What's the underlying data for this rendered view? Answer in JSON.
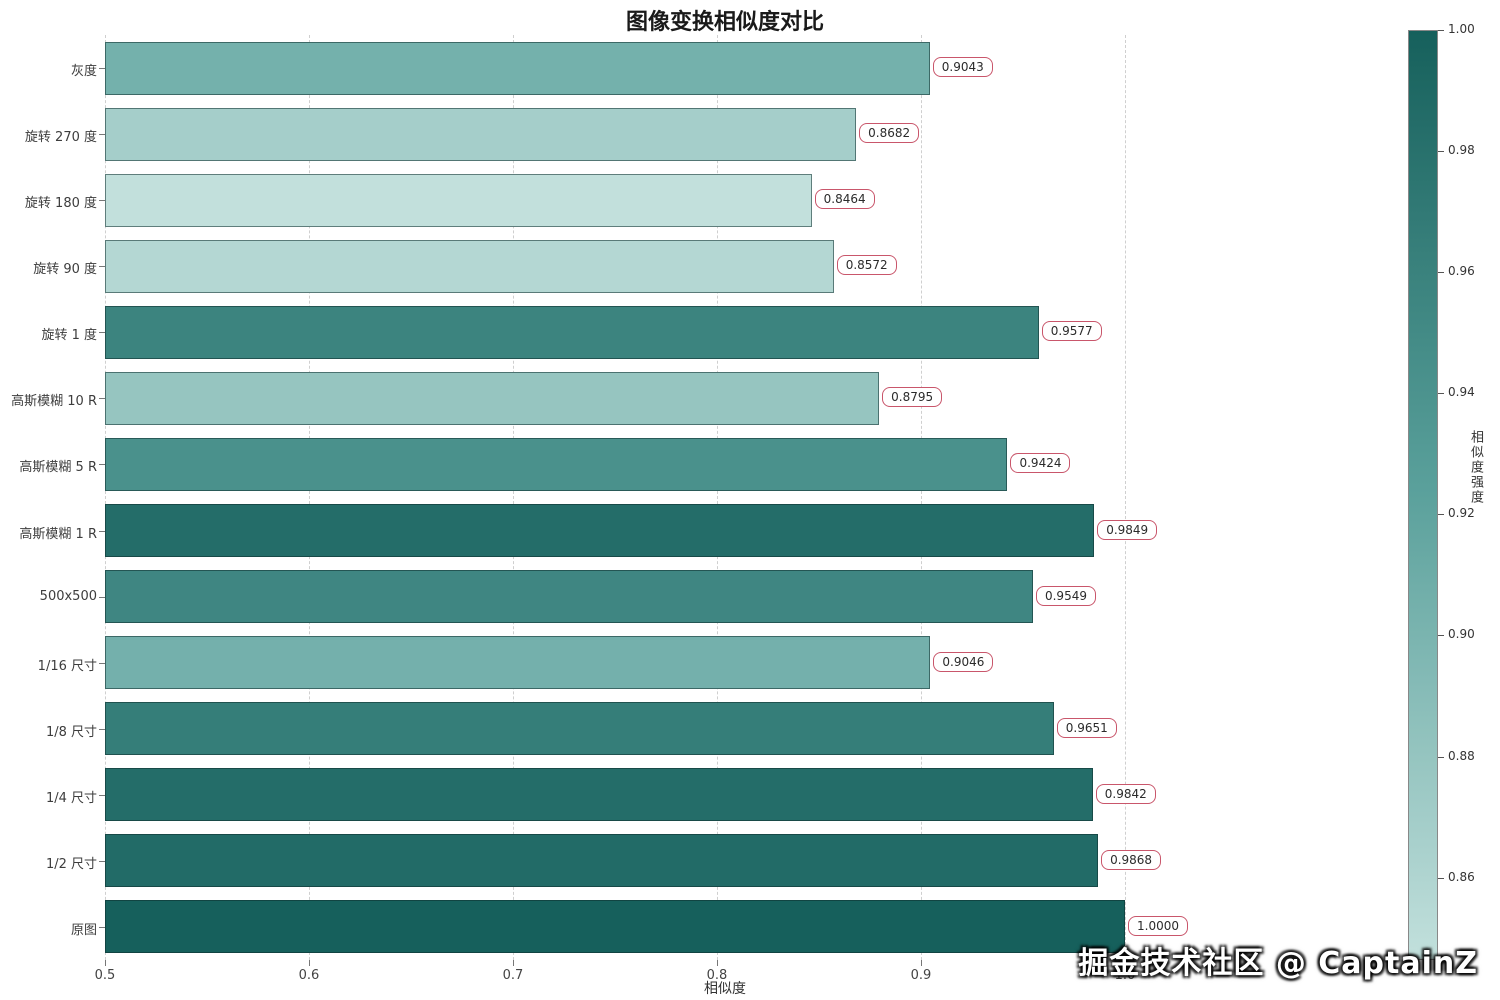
{
  "title": "图像变换相似度对比",
  "xlabel": "相似度",
  "watermark": "掘金技术社区 @ CaptainZ",
  "colorbar": {
    "label": "相似度强度",
    "vmin": 0.8464,
    "vmax": 1.0,
    "ticks": [
      "1.00",
      "0.98",
      "0.96",
      "0.94",
      "0.92",
      "0.90",
      "0.88",
      "0.86"
    ]
  },
  "chart_data": {
    "type": "bar",
    "orientation": "horizontal",
    "title": "图像变换相似度对比",
    "xlabel": "相似度",
    "ylabel": "",
    "categories": [
      "灰度",
      "旋转 270 度",
      "旋转 180 度",
      "旋转 90 度",
      "旋转 1 度",
      "高斯模糊 10 R",
      "高斯模糊 5 R",
      "高斯模糊 1 R",
      "500x500",
      "1/16 尺寸",
      "1/8 尺寸",
      "1/4 尺寸",
      "1/2 尺寸",
      "原图"
    ],
    "values": [
      0.9043,
      0.8682,
      0.8464,
      0.8572,
      0.9577,
      0.8795,
      0.9424,
      0.9849,
      0.9549,
      0.9046,
      0.9651,
      0.9842,
      0.9868,
      1.0
    ],
    "value_labels": [
      "0.9043",
      "0.8682",
      "0.8464",
      "0.8572",
      "0.9577",
      "0.8795",
      "0.9424",
      "0.9849",
      "0.9549",
      "0.9046",
      "0.9651",
      "0.9842",
      "0.9868",
      "1.0000"
    ],
    "xlim": [
      0.5,
      1.1
    ],
    "xticks": [
      "0.5",
      "0.6",
      "0.7",
      "0.8",
      "0.9",
      "1.0"
    ],
    "grid": true,
    "legend": "colorbar-right",
    "colormap_stops": [
      "#c2e0dc",
      "#5ba19c",
      "#16605c"
    ],
    "value_box_border_color": "#c9566b"
  }
}
